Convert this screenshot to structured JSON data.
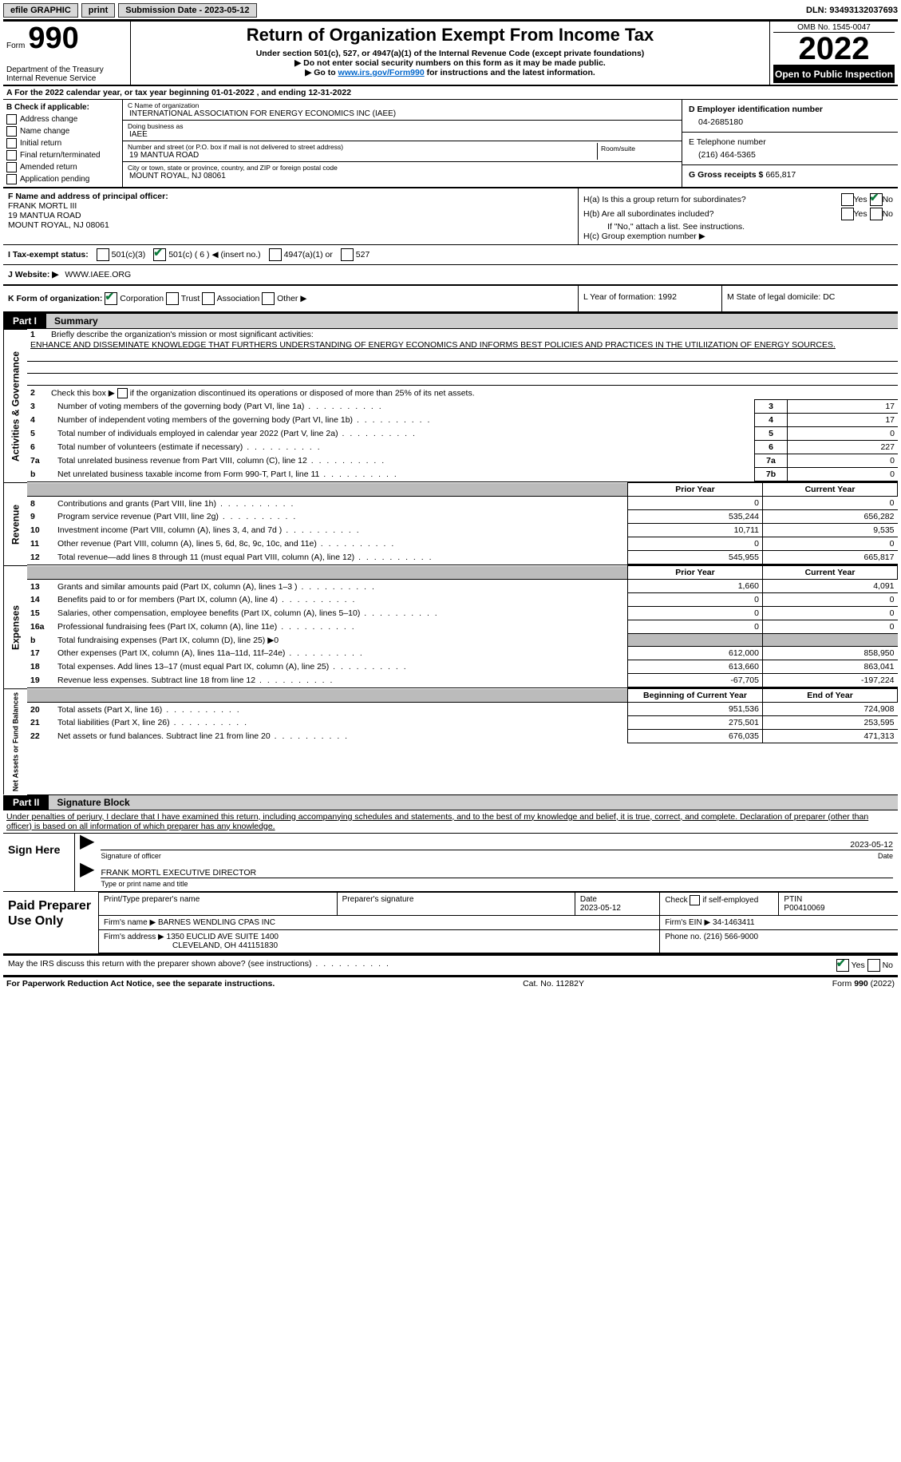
{
  "topbar": {
    "efile": "efile GRAPHIC",
    "print": "print",
    "submission_label": "Submission Date - 2023-05-12",
    "dln": "DLN: 93493132037693"
  },
  "header": {
    "form_word": "Form",
    "form_num": "990",
    "title": "Return of Organization Exempt From Income Tax",
    "sub1": "Under section 501(c), 527, or 4947(a)(1) of the Internal Revenue Code (except private foundations)",
    "sub2": "▶ Do not enter social security numbers on this form as it may be made public.",
    "sub3_pre": "▶ Go to ",
    "sub3_link": "www.irs.gov/Form990",
    "sub3_post": " for instructions and the latest information.",
    "dept": "Department of the Treasury",
    "irs": "Internal Revenue Service",
    "omb": "OMB No. 1545-0047",
    "year": "2022",
    "otp": "Open to Public Inspection"
  },
  "rowA": "A For the 2022 calendar year, or tax year beginning 01-01-2022   , and ending 12-31-2022",
  "sectionB": {
    "hdr": "B Check if applicable:",
    "items": [
      "Address change",
      "Name change",
      "Initial return",
      "Final return/terminated",
      "Amended return",
      "Application pending"
    ],
    "c_label": "C Name of organization",
    "org": "INTERNATIONAL ASSOCIATION FOR ENERGY ECONOMICS INC (IAEE)",
    "dba_label": "Doing business as",
    "dba": "IAEE",
    "addr_label": "Number and street (or P.O. box if mail is not delivered to street address)",
    "room_label": "Room/suite",
    "addr": "19 MANTUA ROAD",
    "city_label": "City or town, state or province, country, and ZIP or foreign postal code",
    "city": "MOUNT ROYAL, NJ  08061",
    "d_label": "D Employer identification number",
    "ein": "04-2685180",
    "e_label": "E Telephone number",
    "phone": "(216) 464-5365",
    "g_label": "G Gross receipts $",
    "gross": "665,817"
  },
  "sectionF": {
    "label": "F Name and address of principal officer:",
    "name": "FRANK MORTL III",
    "addr1": "19 MANTUA ROAD",
    "addr2": "MOUNT ROYAL, NJ  08061",
    "ha": "H(a)  Is this a group return for subordinates?",
    "hb": "H(b)  Are all subordinates included?",
    "hnote": "If \"No,\" attach a list. See instructions.",
    "hc": "H(c)  Group exemption number ▶",
    "yes": "Yes",
    "no": "No"
  },
  "statusI": {
    "label": "I  Tax-exempt status:",
    "c3": "501(c)(3)",
    "c_blank": "501(c) ( 6 ) ◀ (insert no.)",
    "a1": "4947(a)(1) or",
    "s527": "527"
  },
  "rowJ": {
    "label": "J  Website: ▶",
    "val": "WWW.IAEE.ORG"
  },
  "rowK": {
    "label": "K Form of organization:",
    "corp": "Corporation",
    "trust": "Trust",
    "assoc": "Association",
    "other": "Other ▶",
    "l": "L Year of formation: 1992",
    "m": "M State of legal domicile: DC"
  },
  "part1": {
    "tag": "Part I",
    "title": "Summary",
    "line1": "Briefly describe the organization's mission or most significant activities:",
    "mission": "ENHANCE AND DISSEMINATE KNOWLEDGE THAT FURTHERS UNDERSTANDING OF ENERGY ECONOMICS AND INFORMS BEST POLICIES AND PRACTICES IN THE UTILIIZATION OF ENERGY SOURCES.",
    "line2": "Check this box ▶      if the organization discontinued its operations or disposed of more than 25% of its net assets.",
    "ag_rows": [
      {
        "n": "3",
        "t": "Number of voting members of the governing body (Part VI, line 1a)",
        "b": "3",
        "v": "17"
      },
      {
        "n": "4",
        "t": "Number of independent voting members of the governing body (Part VI, line 1b)",
        "b": "4",
        "v": "17"
      },
      {
        "n": "5",
        "t": "Total number of individuals employed in calendar year 2022 (Part V, line 2a)",
        "b": "5",
        "v": "0"
      },
      {
        "n": "6",
        "t": "Total number of volunteers (estimate if necessary)",
        "b": "6",
        "v": "227"
      },
      {
        "n": "7a",
        "t": "Total unrelated business revenue from Part VIII, column (C), line 12",
        "b": "7a",
        "v": "0"
      },
      {
        "n": "b",
        "t": "Net unrelated business taxable income from Form 990-T, Part I, line 11",
        "b": "7b",
        "v": "0"
      }
    ],
    "pc_hdr_prior": "Prior Year",
    "pc_hdr_curr": "Current Year",
    "rev_rows": [
      {
        "n": "8",
        "t": "Contributions and grants (Part VIII, line 1h)",
        "p": "0",
        "c": "0"
      },
      {
        "n": "9",
        "t": "Program service revenue (Part VIII, line 2g)",
        "p": "535,244",
        "c": "656,282"
      },
      {
        "n": "10",
        "t": "Investment income (Part VIII, column (A), lines 3, 4, and 7d )",
        "p": "10,711",
        "c": "9,535"
      },
      {
        "n": "11",
        "t": "Other revenue (Part VIII, column (A), lines 5, 6d, 8c, 9c, 10c, and 11e)",
        "p": "0",
        "c": "0"
      },
      {
        "n": "12",
        "t": "Total revenue—add lines 8 through 11 (must equal Part VIII, column (A), line 12)",
        "p": "545,955",
        "c": "665,817"
      }
    ],
    "exp_rows": [
      {
        "n": "13",
        "t": "Grants and similar amounts paid (Part IX, column (A), lines 1–3 )",
        "p": "1,660",
        "c": "4,091"
      },
      {
        "n": "14",
        "t": "Benefits paid to or for members (Part IX, column (A), line 4)",
        "p": "0",
        "c": "0"
      },
      {
        "n": "15",
        "t": "Salaries, other compensation, employee benefits (Part IX, column (A), lines 5–10)",
        "p": "0",
        "c": "0"
      },
      {
        "n": "16a",
        "t": "Professional fundraising fees (Part IX, column (A), line 11e)",
        "p": "0",
        "c": "0"
      },
      {
        "n": "b",
        "t": "Total fundraising expenses (Part IX, column (D), line 25) ▶0",
        "p": "shade",
        "c": "shade"
      },
      {
        "n": "17",
        "t": "Other expenses (Part IX, column (A), lines 11a–11d, 11f–24e)",
        "p": "612,000",
        "c": "858,950"
      },
      {
        "n": "18",
        "t": "Total expenses. Add lines 13–17 (must equal Part IX, column (A), line 25)",
        "p": "613,660",
        "c": "863,041"
      },
      {
        "n": "19",
        "t": "Revenue less expenses. Subtract line 18 from line 12",
        "p": "-67,705",
        "c": "-197,224"
      }
    ],
    "na_hdr_beg": "Beginning of Current Year",
    "na_hdr_end": "End of Year",
    "na_rows": [
      {
        "n": "20",
        "t": "Total assets (Part X, line 16)",
        "p": "951,536",
        "c": "724,908"
      },
      {
        "n": "21",
        "t": "Total liabilities (Part X, line 26)",
        "p": "275,501",
        "c": "253,595"
      },
      {
        "n": "22",
        "t": "Net assets or fund balances. Subtract line 21 from line 20",
        "p": "676,035",
        "c": "471,313"
      }
    ],
    "vlabels": {
      "ag": "Activities & Governance",
      "rev": "Revenue",
      "exp": "Expenses",
      "na": "Net Assets or Fund Balances"
    }
  },
  "part2": {
    "tag": "Part II",
    "title": "Signature Block",
    "decl": "Under penalties of perjury, I declare that I have examined this return, including accompanying schedules and statements, and to the best of my knowledge and belief, it is true, correct, and complete. Declaration of preparer (other than officer) is based on all information of which preparer has any knowledge.",
    "sign_here": "Sign Here",
    "sig_officer": "Signature of officer",
    "date_lbl": "Date",
    "sig_date": "2023-05-12",
    "name_title": "FRANK MORTL  EXECUTIVE DIRECTOR",
    "type_lbl": "Type or print name and title",
    "paid": "Paid Preparer Use Only",
    "prep_name_lbl": "Print/Type preparer's name",
    "prep_sig_lbl": "Preparer's signature",
    "prep_date_lbl": "Date",
    "prep_date": "2023-05-12",
    "check_self": "Check         if self-employed",
    "ptin_lbl": "PTIN",
    "ptin": "P00410069",
    "firm_name_lbl": "Firm's name    ▶",
    "firm_name": "BARNES WENDLING CPAS INC",
    "firm_ein_lbl": "Firm's EIN ▶",
    "firm_ein": "34-1463411",
    "firm_addr_lbl": "Firm's address ▶",
    "firm_addr1": "1350 EUCLID AVE SUITE 1400",
    "firm_addr2": "CLEVELAND, OH  441151830",
    "firm_phone_lbl": "Phone no.",
    "firm_phone": "(216) 566-9000",
    "discuss": "May the IRS discuss this return with the preparer shown above? (see instructions)"
  },
  "footer": {
    "left": "For Paperwork Reduction Act Notice, see the separate instructions.",
    "mid": "Cat. No. 11282Y",
    "right": "Form 990 (2022)"
  }
}
